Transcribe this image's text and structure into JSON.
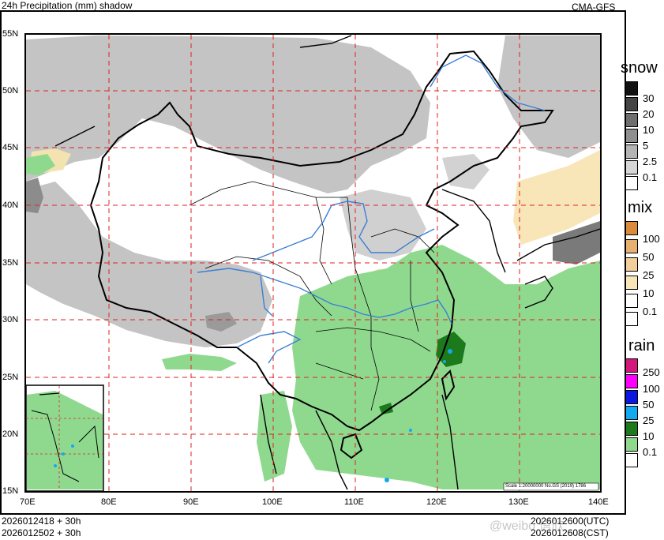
{
  "header": {
    "title": "24h Precipitation (mm) shadow",
    "model": "CMA-GFS"
  },
  "footer": {
    "init_utc": "2026012418 + 30h",
    "init_cst": "2026012502 + 30h",
    "valid_utc": "2026012600(UTC)",
    "valid_cst": "2026012608(CST)",
    "watermark": "@weibo 信欣"
  },
  "map": {
    "scale_note": "Scale 1:20000000 No.GS (2019) 1786",
    "lat_labels": [
      "55N",
      "50N",
      "45N",
      "40N",
      "35N",
      "30N",
      "25N",
      "20N",
      "15N"
    ],
    "lon_labels": [
      "70E",
      "80E",
      "90E",
      "100E",
      "110E",
      "120E",
      "130E",
      "140E"
    ]
  },
  "legend": {
    "snow": {
      "title": "snow",
      "levels": [
        "30",
        "20",
        "10",
        "5",
        "2.5",
        "0.1"
      ],
      "colors": [
        "#111111",
        "#444444",
        "#6e6e6e",
        "#8f8f8f",
        "#b4b4b4",
        "#d6d6d6",
        "#ffffff"
      ]
    },
    "mix": {
      "title": "mix",
      "levels": [
        "100",
        "50",
        "25",
        "10",
        "0.1"
      ],
      "colors": [
        "#d98a3a",
        "#e8b070",
        "#f2cf9a",
        "#f8e6b8",
        "#ffffff"
      ]
    },
    "rain": {
      "title": "rain",
      "levels": [
        "250",
        "100",
        "50",
        "25",
        "10",
        "0.1"
      ],
      "colors": [
        "#d4177a",
        "#ff00ff",
        "#0a17e0",
        "#11aaf0",
        "#1c7a1c",
        "#8fd98f",
        "#ffffff"
      ]
    }
  }
}
